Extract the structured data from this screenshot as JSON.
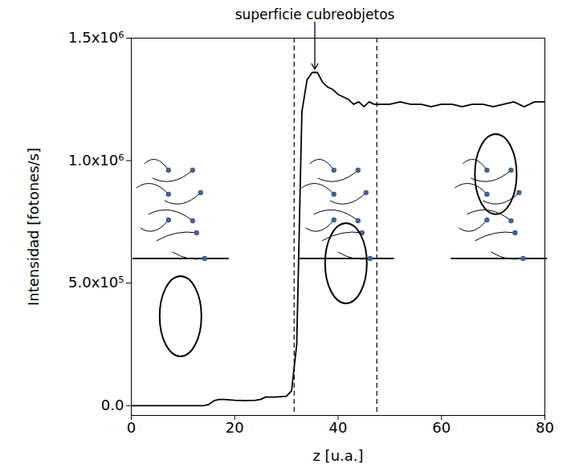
{
  "chart_data": {
    "type": "line",
    "xlabel": "z [u.a.]",
    "ylabel": "Intensidad [fotones/s]",
    "x": [
      0,
      5,
      10,
      14,
      15,
      16,
      17,
      18,
      20,
      22,
      24,
      25,
      26,
      28,
      30,
      31,
      32,
      33,
      34,
      35,
      36,
      37,
      38,
      39,
      40,
      41,
      42,
      43,
      44,
      45,
      46,
      47,
      48,
      50,
      52,
      54,
      56,
      58,
      60,
      62,
      64,
      66,
      68,
      70,
      72,
      74,
      76,
      78,
      80
    ],
    "values": [
      0,
      0,
      0,
      0,
      5000,
      20000,
      25000,
      25000,
      22000,
      20000,
      22000,
      25000,
      35000,
      35000,
      38000,
      60000,
      250000,
      1200000,
      1330000,
      1360000,
      1360000,
      1320000,
      1300000,
      1290000,
      1270000,
      1260000,
      1250000,
      1230000,
      1240000,
      1220000,
      1240000,
      1230000,
      1230000,
      1230000,
      1240000,
      1230000,
      1230000,
      1220000,
      1230000,
      1230000,
      1220000,
      1230000,
      1230000,
      1220000,
      1230000,
      1240000,
      1220000,
      1240000,
      1240000
    ],
    "color": "#000000",
    "xlim": [
      0,
      80
    ],
    "xticks": [
      0,
      20,
      40,
      60,
      80
    ],
    "ylim": [
      -40000,
      1500000
    ],
    "yticks": [
      {
        "value": 0,
        "label": "0.0"
      },
      {
        "value": 500000,
        "label": "5.0x10⁵"
      },
      {
        "value": 1000000,
        "label": "1.0x10⁶"
      },
      {
        "value": 1500000,
        "label": "1.5x10⁶"
      }
    ],
    "vertical_lines": {
      "x": [
        31.5,
        47.5
      ],
      "line_style": "dashed"
    },
    "annotations": [
      {
        "text": "superficie cubreobjetos",
        "x": 35.5,
        "y": 1360000
      }
    ]
  }
}
